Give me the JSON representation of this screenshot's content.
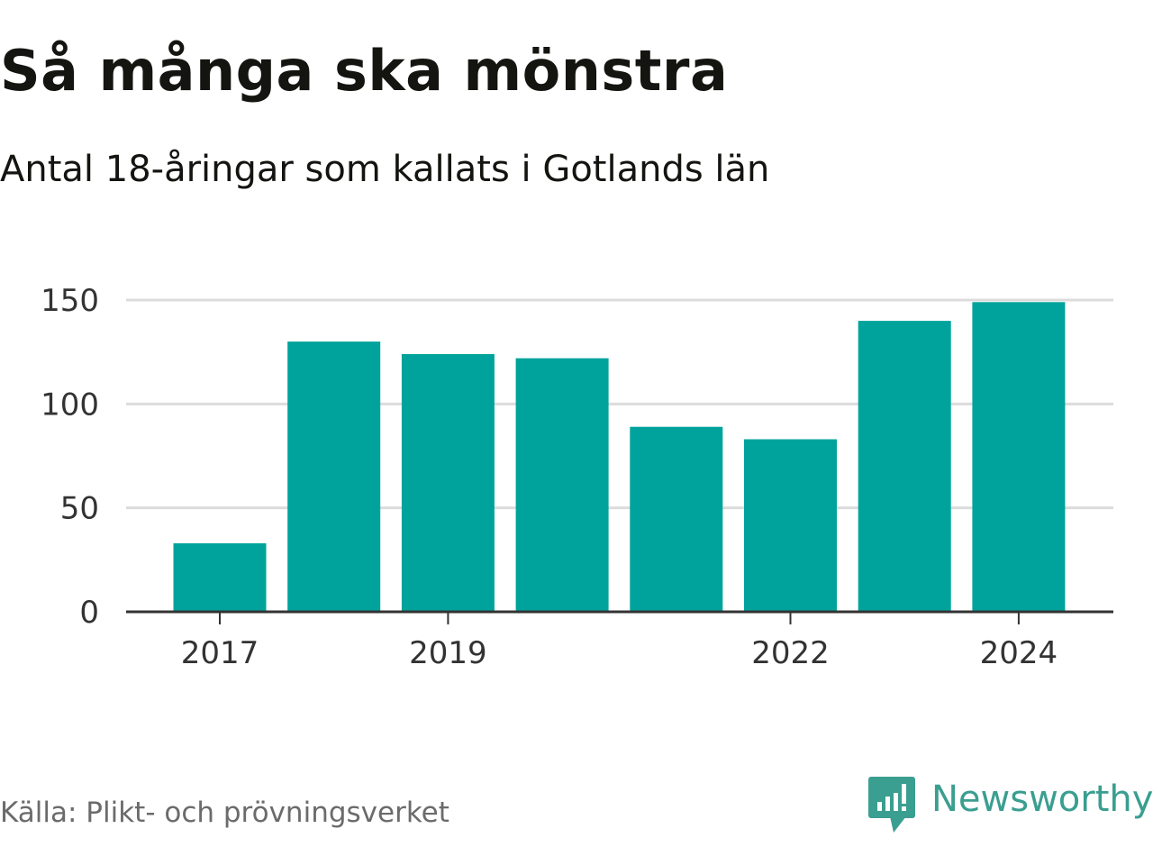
{
  "title": "Så många ska mönstra",
  "subtitle": "Antal 18-åringar som kallats i Gotlands län",
  "source": "Källa: Plikt- och prövningsverket",
  "brand": {
    "name": "Newsworthy",
    "icon": "newsworthy-logo-icon",
    "color": "#3a9e90"
  },
  "colors": {
    "bar": "#00a39b",
    "grid": "#dcdcdc",
    "axis": "#333333"
  },
  "chart_data": {
    "type": "bar",
    "title": "Så många ska mönstra",
    "subtitle": "Antal 18-åringar som kallats i Gotlands län",
    "xlabel": "",
    "ylabel": "",
    "categories": [
      "2017",
      "2018",
      "2019",
      "2020",
      "2021",
      "2022",
      "2023",
      "2024"
    ],
    "x_tick_labels": [
      "2017",
      "2019",
      "2022",
      "2024"
    ],
    "values": [
      33,
      130,
      124,
      122,
      89,
      83,
      140,
      149
    ],
    "ylim": [
      0,
      150
    ],
    "y_ticks": [
      0,
      50,
      100,
      150
    ],
    "grid": true
  }
}
